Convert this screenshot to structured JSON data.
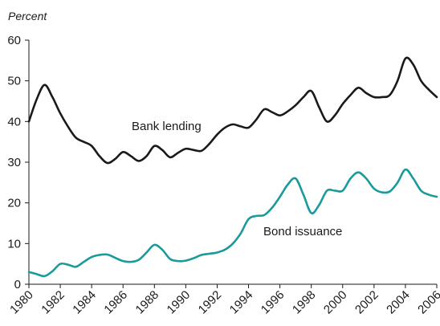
{
  "chart_data": {
    "type": "line",
    "ylabel": "Percent",
    "ylim": [
      0,
      60
    ],
    "yticks": [
      0,
      10,
      20,
      30,
      40,
      50,
      60
    ],
    "xlim": [
      1980,
      2006
    ],
    "xticks": [
      1980,
      1982,
      1984,
      1986,
      1988,
      1990,
      1992,
      1994,
      1996,
      1998,
      2000,
      2002,
      2004,
      2006
    ],
    "xtick_labels": [
      "1980",
      "1982",
      "1984",
      "1986",
      "1988",
      "1990",
      "1992",
      "1994",
      "1996",
      "1998",
      "2000",
      "2002",
      "2004",
      "2006"
    ],
    "grid": false,
    "series": [
      {
        "name": "Bank lending",
        "color": "#1a1a1a",
        "x": [
          1980,
          1980.5,
          1981,
          1981.5,
          1982,
          1982.5,
          1983,
          1983.5,
          1984,
          1984.5,
          1985,
          1985.5,
          1986,
          1986.5,
          1987,
          1987.5,
          1988,
          1988.5,
          1989,
          1989.5,
          1990,
          1990.5,
          1991,
          1991.5,
          1992,
          1992.5,
          1993,
          1993.5,
          1994,
          1994.5,
          1995,
          1995.5,
          1996,
          1996.5,
          1997,
          1997.5,
          1998,
          1998.5,
          1999,
          1999.5,
          2000,
          2000.5,
          2001,
          2001.5,
          2002,
          2002.5,
          2003,
          2003.5,
          2004,
          2004.5,
          2005,
          2005.5,
          2006
        ],
        "values": [
          40,
          45.5,
          49,
          46,
          42,
          38.7,
          36,
          35,
          34,
          31.5,
          29.8,
          30.8,
          32.5,
          31.5,
          30.3,
          31.5,
          34,
          33,
          31.2,
          32.3,
          33.3,
          33,
          32.8,
          34.5,
          36.8,
          38.5,
          39.3,
          38.8,
          38.5,
          40.5,
          43,
          42.3,
          41.5,
          42.5,
          44,
          46,
          47.5,
          43.5,
          40,
          41.5,
          44.3,
          46.5,
          48.3,
          47,
          46,
          46,
          46.5,
          50,
          55.5,
          54,
          50,
          47.8,
          46
        ]
      },
      {
        "name": "Bond issuance",
        "color": "#1a9a9a",
        "x": [
          1980,
          1980.5,
          1981,
          1981.5,
          1982,
          1982.5,
          1983,
          1983.5,
          1984,
          1984.5,
          1985,
          1985.5,
          1986,
          1986.5,
          1987,
          1987.5,
          1988,
          1988.5,
          1989,
          1989.5,
          1990,
          1990.5,
          1991,
          1991.5,
          1992,
          1992.5,
          1993,
          1993.5,
          1994,
          1994.5,
          1995,
          1995.5,
          1996,
          1996.5,
          1997,
          1997.5,
          1998,
          1998.5,
          1999,
          1999.5,
          2000,
          2000.5,
          2001,
          2001.5,
          2002,
          2002.5,
          2003,
          2003.5,
          2004,
          2004.5,
          2005,
          2005.5,
          2006
        ],
        "values": [
          3,
          2.5,
          2,
          3.2,
          5,
          4.8,
          4.3,
          5.5,
          6.7,
          7.2,
          7.3,
          6.5,
          5.7,
          5.5,
          6,
          7.8,
          9.7,
          8.5,
          6.2,
          5.7,
          5.8,
          6.4,
          7.2,
          7.5,
          7.8,
          8.5,
          10,
          12.5,
          16,
          16.8,
          17,
          18.8,
          21.5,
          24.5,
          26,
          22,
          17.5,
          19.5,
          23,
          23,
          23,
          26,
          27.5,
          26,
          23.5,
          22.6,
          22.8,
          25,
          28.2,
          26,
          23,
          22,
          21.5
        ]
      }
    ]
  }
}
